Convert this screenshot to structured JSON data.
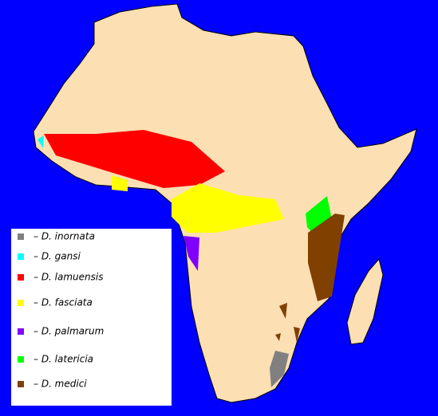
{
  "legend": {
    "items": [
      {
        "label": "– D. inornata",
        "color": "#808080"
      },
      {
        "label": "– D. gansi",
        "color": "#00ffff"
      },
      {
        "label": "– D. lamuensis",
        "color": "#ff0000"
      },
      {
        "label": "– D. fasciata",
        "color": "#ffff00"
      },
      {
        "label": "– D. palmarum",
        "color": "#8000ff"
      },
      {
        "label": "– D. latericia",
        "color": "#00ff00"
      },
      {
        "label": "– D. medici",
        "color": "#804000"
      }
    ]
  }
}
